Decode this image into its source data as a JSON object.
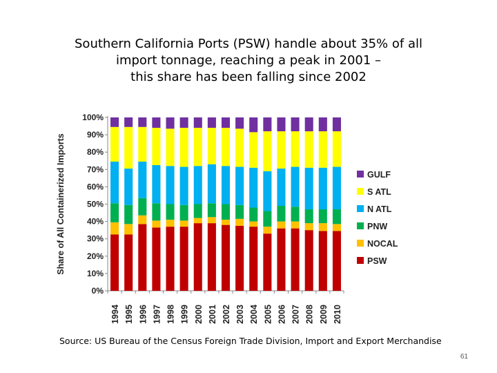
{
  "slide": {
    "title_lines": [
      "Southern California Ports (PSW) handle about 35% of all",
      "import tonnage, reaching a peak in 2001 –",
      "this share has been falling since 2002"
    ],
    "source": "Source: US Bureau of the Census Foreign Trade Division, Import and Export Merchandise",
    "page_number": "61"
  },
  "chart_data": {
    "type": "bar",
    "stacked": true,
    "title": "",
    "ylabel": "Share of All Containerized Imports",
    "xlabel": "",
    "ylim": [
      0,
      100
    ],
    "yticks": [
      "0%",
      "10%",
      "20%",
      "30%",
      "40%",
      "50%",
      "60%",
      "70%",
      "80%",
      "90%",
      "100%"
    ],
    "grid": false,
    "legend_position": "right",
    "categories": [
      "1994",
      "1995",
      "1996",
      "1997",
      "1998",
      "1999",
      "2000",
      "2001",
      "2002",
      "2003",
      "2004",
      "2005",
      "2006",
      "2007",
      "2008",
      "2009",
      "2010"
    ],
    "series": [
      {
        "name": "PSW",
        "color": "#C00000",
        "values": [
          32.5,
          32.5,
          38.5,
          36.5,
          37,
          37,
          39,
          39,
          38,
          37.5,
          37,
          33,
          36,
          36,
          35,
          34.5,
          34.5
        ]
      },
      {
        "name": "NOCAL",
        "color": "#FFC000",
        "values": [
          7,
          6,
          5,
          4,
          4,
          3.5,
          3,
          3.5,
          3,
          4,
          3,
          4,
          4,
          4,
          4,
          4.5,
          4
        ]
      },
      {
        "name": "PNW",
        "color": "#00B050",
        "values": [
          11,
          11,
          10,
          10,
          9,
          9,
          8,
          8,
          9,
          8,
          8,
          9,
          9,
          8.5,
          8,
          8,
          8.5
        ]
      },
      {
        "name": "N ATL",
        "color": "#00B0F0",
        "values": [
          24,
          21,
          21,
          22,
          22,
          22,
          22,
          22.5,
          22,
          22,
          23,
          23,
          21.5,
          23,
          24,
          24,
          24.5
        ]
      },
      {
        "name": "S ATL",
        "color": "#FFFF00",
        "values": [
          20,
          24,
          20,
          21.5,
          21.5,
          22.5,
          22,
          21,
          22,
          22,
          20.5,
          23,
          21.5,
          20.5,
          21,
          21,
          20.5
        ]
      },
      {
        "name": "GULF",
        "color": "#7030A0",
        "values": [
          5.5,
          5.5,
          5.5,
          6,
          6.5,
          6,
          6,
          6,
          6,
          6.5,
          8.5,
          8,
          8,
          8,
          8,
          8,
          8
        ]
      }
    ]
  }
}
